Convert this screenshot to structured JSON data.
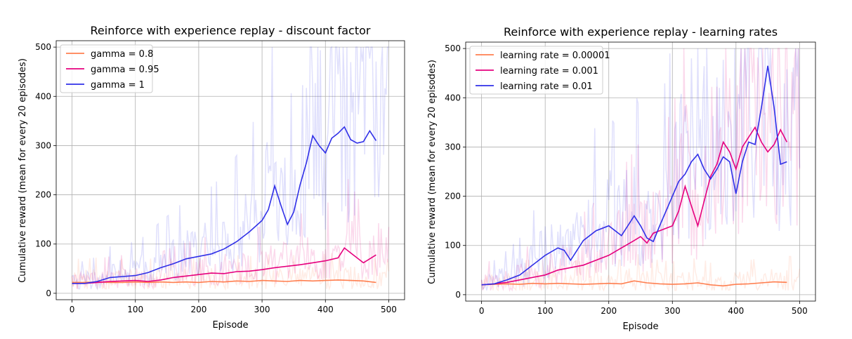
{
  "chart_data": [
    {
      "type": "line",
      "title": "Reinforce with experience replay - discount factor",
      "xlabel": "Episode",
      "ylabel": "Cumulative reward (mean for every 20 episodes)",
      "xlim": [
        -25,
        525
      ],
      "ylim": [
        -13,
        513
      ],
      "xticks": [
        0,
        100,
        200,
        300,
        400,
        500
      ],
      "yticks": [
        0,
        100,
        200,
        300,
        400,
        500
      ],
      "grid": true,
      "legend_position": "upper-left",
      "series": [
        {
          "name": "gamma = 0.8",
          "color": "#ff7f50",
          "x": [
            0,
            20,
            40,
            60,
            80,
            100,
            120,
            140,
            160,
            180,
            200,
            220,
            240,
            260,
            280,
            300,
            320,
            340,
            360,
            380,
            400,
            420,
            440,
            460,
            480
          ],
          "values": [
            22,
            22,
            23,
            22,
            22,
            23,
            22,
            23,
            22,
            23,
            22,
            24,
            23,
            25,
            24,
            26,
            25,
            24,
            26,
            25,
            26,
            27,
            26,
            25,
            22
          ]
        },
        {
          "name": "gamma = 0.95",
          "color": "#e6007e",
          "x": [
            0,
            20,
            40,
            60,
            80,
            100,
            120,
            140,
            160,
            180,
            200,
            220,
            240,
            260,
            280,
            300,
            320,
            340,
            360,
            380,
            400,
            420,
            430,
            440,
            460,
            480
          ],
          "values": [
            20,
            20,
            22,
            24,
            25,
            26,
            24,
            27,
            32,
            35,
            38,
            41,
            40,
            44,
            45,
            48,
            52,
            55,
            58,
            62,
            66,
            72,
            92,
            82,
            62,
            78
          ]
        },
        {
          "name": "gamma = 1",
          "color": "#3030e8",
          "x": [
            0,
            20,
            40,
            60,
            80,
            100,
            120,
            140,
            160,
            180,
            200,
            220,
            240,
            260,
            280,
            300,
            310,
            320,
            330,
            340,
            350,
            360,
            370,
            380,
            390,
            400,
            410,
            420,
            430,
            440,
            450,
            460,
            470,
            480
          ],
          "values": [
            20,
            20,
            24,
            32,
            34,
            36,
            42,
            52,
            60,
            70,
            75,
            80,
            90,
            105,
            125,
            148,
            170,
            218,
            178,
            140,
            165,
            220,
            265,
            320,
            300,
            285,
            315,
            325,
            338,
            312,
            305,
            308,
            330,
            310
          ]
        }
      ]
    },
    {
      "type": "line",
      "title": "Reinforce with experience replay - learning rates",
      "xlabel": "Episode",
      "ylabel": "Cumulative reward (mean for every 20 episodes)",
      "xlim": [
        -25,
        525
      ],
      "ylim": [
        -13,
        513
      ],
      "xticks": [
        0,
        100,
        200,
        300,
        400,
        500
      ],
      "yticks": [
        0,
        100,
        200,
        300,
        400,
        500
      ],
      "grid": true,
      "legend_position": "upper-left",
      "series": [
        {
          "name": "learning rate = 0.00001",
          "color": "#ff7f50",
          "x": [
            0,
            20,
            40,
            60,
            80,
            100,
            120,
            140,
            160,
            180,
            200,
            220,
            240,
            260,
            280,
            300,
            320,
            340,
            360,
            380,
            400,
            420,
            440,
            460,
            480
          ],
          "values": [
            20,
            21,
            22,
            21,
            23,
            22,
            23,
            22,
            21,
            22,
            23,
            22,
            28,
            24,
            22,
            21,
            22,
            24,
            20,
            18,
            21,
            22,
            24,
            26,
            25
          ]
        },
        {
          "name": "learning rate = 0.001",
          "color": "#e6007e",
          "x": [
            0,
            20,
            40,
            60,
            80,
            100,
            120,
            140,
            160,
            180,
            200,
            220,
            240,
            250,
            260,
            270,
            280,
            300,
            310,
            320,
            330,
            340,
            350,
            360,
            370,
            380,
            390,
            400,
            410,
            420,
            430,
            440,
            450,
            460,
            470,
            480
          ],
          "values": [
            20,
            22,
            25,
            30,
            35,
            40,
            50,
            55,
            60,
            70,
            80,
            95,
            110,
            118,
            105,
            125,
            130,
            140,
            170,
            220,
            180,
            140,
            190,
            240,
            265,
            310,
            290,
            255,
            300,
            320,
            340,
            310,
            290,
            305,
            335,
            310
          ]
        },
        {
          "name": "learning rate = 0.01",
          "color": "#3030e8",
          "x": [
            0,
            20,
            40,
            60,
            80,
            100,
            120,
            130,
            140,
            160,
            180,
            200,
            220,
            240,
            250,
            260,
            270,
            280,
            300,
            310,
            320,
            330,
            340,
            350,
            360,
            370,
            380,
            390,
            400,
            410,
            420,
            430,
            440,
            450,
            460,
            470,
            480
          ],
          "values": [
            20,
            22,
            30,
            40,
            60,
            80,
            95,
            90,
            70,
            110,
            130,
            140,
            120,
            160,
            140,
            115,
            108,
            140,
            200,
            230,
            245,
            270,
            285,
            255,
            235,
            255,
            280,
            270,
            205,
            270,
            310,
            305,
            380,
            465,
            380,
            265,
            270
          ]
        }
      ]
    }
  ]
}
